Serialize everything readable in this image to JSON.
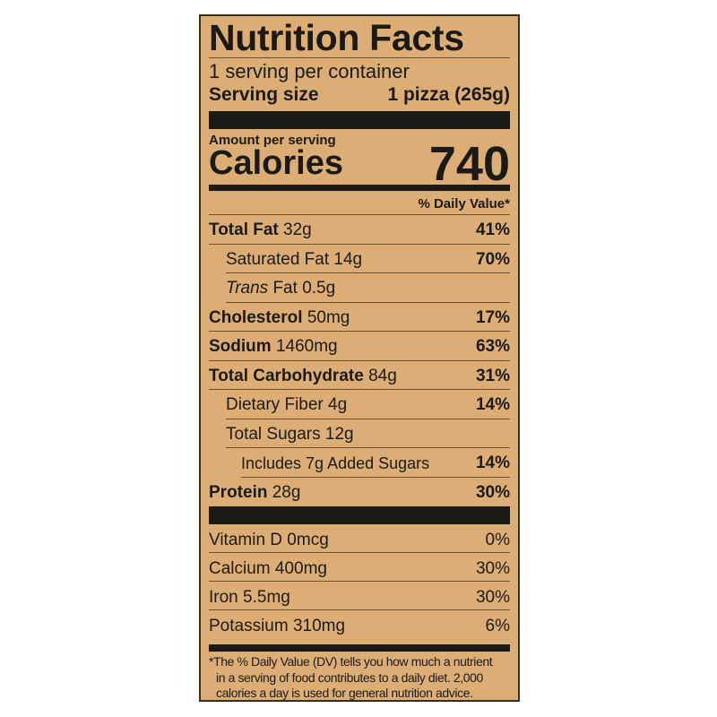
{
  "title": "Nutrition Facts",
  "servings_per_container": "1 serving per container",
  "serving_size_label": "Serving size",
  "serving_size_value": "1 pizza (265g)",
  "amount_per_serving": "Amount per serving",
  "calories_label": "Calories",
  "calories": "740",
  "daily_value_header": "% Daily Value*",
  "nutrients": [
    {
      "name": "Total Fat",
      "amount": "32g",
      "dv": "41%"
    },
    {
      "name": "Saturated Fat",
      "amount": "14g",
      "dv": "70%"
    },
    {
      "name_italic": "Trans",
      "name": "Fat",
      "amount": "0.5g",
      "dv": ""
    },
    {
      "name": "Cholesterol",
      "amount": "50mg",
      "dv": "17%"
    },
    {
      "name": "Sodium",
      "amount": "1460mg",
      "dv": "63%"
    },
    {
      "name": "Total Carbohydrate",
      "amount": "84g",
      "dv": "31%"
    },
    {
      "name": "Dietary Fiber",
      "amount": "4g",
      "dv": "14%"
    },
    {
      "name": "Total Sugars",
      "amount": "12g",
      "dv": ""
    },
    {
      "name": "Includes 7g Added Sugars",
      "amount": "",
      "dv": "14%"
    },
    {
      "name": "Protein",
      "amount": "28g",
      "dv": "30%"
    }
  ],
  "vitamins": [
    {
      "name": "Vitamin D",
      "amount": "0mcg",
      "dv": "0%"
    },
    {
      "name": "Calcium",
      "amount": "400mg",
      "dv": "30%"
    },
    {
      "name": "Iron",
      "amount": "5.5mg",
      "dv": "30%"
    },
    {
      "name": "Potassium",
      "amount": "310mg",
      "dv": "6%"
    }
  ],
  "footnote": [
    "*The % Daily Value (DV) tells you how much a nutrient",
    "in a serving of food contributes to a daily diet. 2,000",
    "calories a day is used for general nutrition advice."
  ],
  "colors": {
    "background": "#dcae76",
    "ink": "#1c1a17"
  }
}
